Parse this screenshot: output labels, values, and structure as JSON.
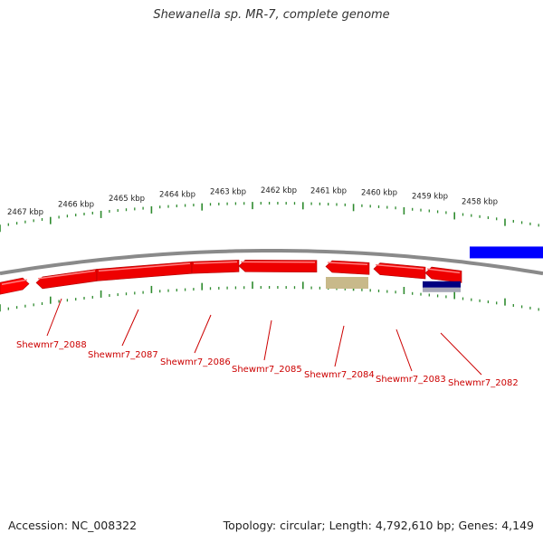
{
  "title": "Shewanella sp. MR-7, complete genome",
  "footer": {
    "accession": "Accession: NC_008322",
    "summary": "Topology: circular; Length: 4,792,610 bp; Genes: 4,149"
  },
  "colors": {
    "gene_forward": "#ff0000",
    "gene_reverse": "#ee0000",
    "gene_blue": "#0000ff",
    "feature_tan": "#c8b98a",
    "feature_navy": "#000080",
    "backbone": "#8a8a8a",
    "tick": "#2e8b2e",
    "label": "#cc0000"
  },
  "kbp_ticks": [
    "2467 kbp",
    "2466 kbp",
    "2465 kbp",
    "2464 kbp",
    "2463 kbp",
    "2462 kbp",
    "2461 kbp",
    "2460 kbp",
    "2459 kbp",
    "2458 kbp"
  ],
  "gene_labels": [
    "Shewmr7_2088",
    "Shewmr7_2087",
    "Shewmr7_2086",
    "Shewmr7_2085",
    "Shewmr7_2084",
    "Shewmr7_2083",
    "Shewmr7_2082"
  ]
}
